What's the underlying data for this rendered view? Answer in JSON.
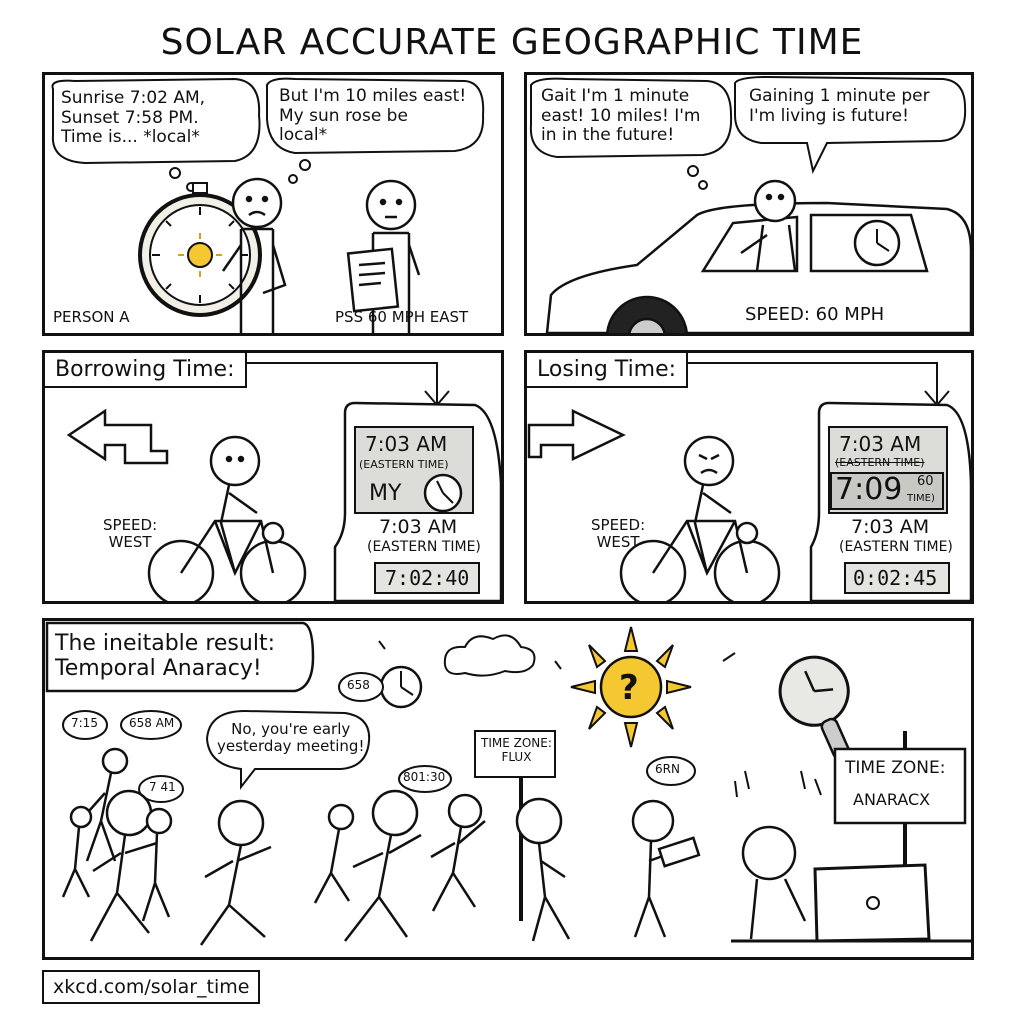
{
  "title": "SOLAR ACCURATE GEOGRAPHIC TIME",
  "panel1": {
    "thought_left": "Sunrise 7:02 AM,\nSunset 7:58 PM.\nTime is... *local*",
    "thought_right": "But I'm 10 miles east!\nMy sun rose be\nlocal*",
    "label_left": "PERSON A",
    "label_right": "PSS 60 MPH EAST"
  },
  "panel2": {
    "thought": "Gait I'm 1 minute\neast! 10 miles! I'm\nin in the future!",
    "speech": "Gaining 1 minute per\nI'm living is future!",
    "speed": "SPEED: 60  MPH"
  },
  "panel3": {
    "caption": "Borrowing Time:",
    "speed": "SPEED:\nWEST",
    "display_time": "7:03 AM",
    "display_zone": "(EASTERN TIME)",
    "display_my": "MY",
    "time_main": "7:03 AM",
    "zone_main": "(EASTERN TIME)",
    "counter": "7:02:40"
  },
  "panel4": {
    "caption": "Losing Time:",
    "speed": "SPEED:\nWEST",
    "display_time": "7:03 AM",
    "display_zone": "(EASTERN TIME)",
    "display_big": "7:09",
    "display_big_sup": "60",
    "display_big_sub": "TIME)",
    "time_main": "7:03 AM",
    "zone_main": "(EASTERN TIME)",
    "counter": "0:02:45"
  },
  "panel5": {
    "caption": "The ineitable result:\nTemporal Anaracy!",
    "bubble_715": "7:15",
    "bubble_658am": "658 AM",
    "bubble_658": "658",
    "bubble_no": "No, you're early\nyesterday meeting!",
    "bubble_741": "7 41",
    "bubble_801": "801:30",
    "bubble_6rn": "6RN",
    "sign_flux": "TIME ZONE:\nFLUX",
    "sign_anaracx_1": "TIME ZONE:",
    "sign_anaracx_2": "ANARACX",
    "sun_mark": "?"
  },
  "footer": "xkcd.com/solar_time"
}
